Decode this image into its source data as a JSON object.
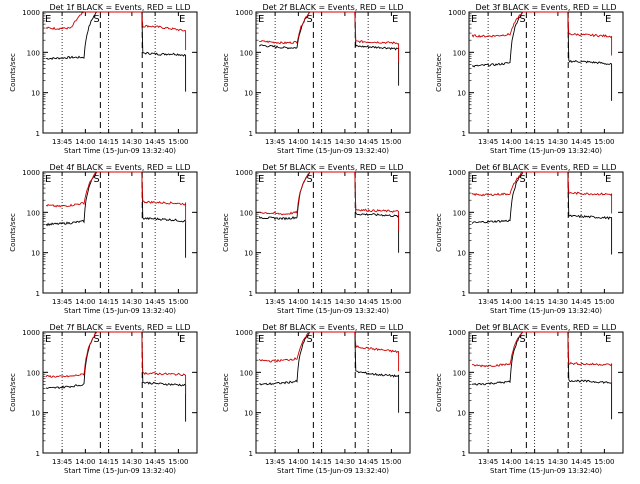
{
  "figure": {
    "xlabel": "Start Time (15-Jun-09 13:32:40)",
    "ylabel": "Counts/sec"
  },
  "chart_data": [
    {
      "type": "line",
      "title": "Det 1f BLACK = Events, RED = LLD",
      "xlabel": "Start Time (15-Jun-09 13:32:40)",
      "ylabel": "Counts/sec",
      "x_ticks": [
        "13:45",
        "14:00",
        "14:15",
        "14:30",
        "14:45",
        "15:00"
      ],
      "y_ticks": [
        "1",
        "10",
        "100",
        "1000"
      ],
      "ylim": [
        1,
        1000
      ],
      "yscale": "log",
      "xlim": [
        "13:32:40",
        "15:12"
      ],
      "markers": [
        "S",
        "E"
      ],
      "series": [
        {
          "color": "#000000",
          "values": [
            70,
            72,
            75,
            75,
            1000,
            1000,
            95,
            98,
            95,
            90,
            92,
            85
          ]
        },
        {
          "color": "#cc0000",
          "values": [
            400,
            390,
            400,
            1000,
            1000,
            1000,
            450,
            430,
            450,
            420,
            380,
            340
          ]
        }
      ]
    },
    {
      "type": "line",
      "title": "Det 2f BLACK = Events, RED = LLD",
      "xlabel": "Start Time (15-Jun-09 13:32:40)",
      "ylabel": "Counts/sec",
      "x_ticks": [
        "13:45",
        "14:00",
        "14:15",
        "14:30",
        "14:45",
        "15:00"
      ],
      "y_ticks": [
        "1",
        "10",
        "100",
        "1000"
      ],
      "ylim": [
        1,
        1000
      ],
      "yscale": "log",
      "xlim": [
        "13:32:40",
        "15:12"
      ],
      "markers": [
        "S",
        "E"
      ],
      "series": [
        {
          "color": "#000000",
          "values": [
            150,
            140,
            130,
            130,
            1000,
            1000,
            150,
            145,
            140,
            135,
            130,
            120
          ]
        },
        {
          "color": "#cc0000",
          "values": [
            190,
            180,
            170,
            180,
            1000,
            1000,
            200,
            190,
            185,
            180,
            175,
            170
          ]
        }
      ]
    },
    {
      "type": "line",
      "title": "Det 3f BLACK = Events, RED = LLD",
      "xlabel": "Start Time (15-Jun-09 13:32:40)",
      "ylabel": "Counts/sec",
      "x_ticks": [
        "13:45",
        "14:00",
        "14:15",
        "14:30",
        "14:45",
        "15:00"
      ],
      "y_ticks": [
        "1",
        "10",
        "100",
        "1000"
      ],
      "ylim": [
        1,
        1000
      ],
      "yscale": "log",
      "xlim": [
        "13:32:40",
        "15:12"
      ],
      "markers": [
        "S",
        "E"
      ],
      "series": [
        {
          "color": "#000000",
          "values": [
            45,
            48,
            50,
            55,
            1000,
            1000,
            60,
            62,
            60,
            58,
            55,
            50
          ]
        },
        {
          "color": "#cc0000",
          "values": [
            260,
            250,
            260,
            280,
            1000,
            1000,
            300,
            290,
            280,
            270,
            260,
            250
          ]
        }
      ]
    },
    {
      "type": "line",
      "title": "Det 4f BLACK = Events, RED = LLD",
      "xlabel": "Start Time (15-Jun-09 13:32:40)",
      "ylabel": "Counts/sec",
      "x_ticks": [
        "13:45",
        "14:00",
        "14:15",
        "14:30",
        "14:45",
        "15:00"
      ],
      "y_ticks": [
        "1",
        "10",
        "100",
        "1000"
      ],
      "ylim": [
        1,
        1000
      ],
      "yscale": "log",
      "xlim": [
        "13:32:40",
        "15:12"
      ],
      "markers": [
        "S",
        "E"
      ],
      "series": [
        {
          "color": "#000000",
          "values": [
            50,
            52,
            55,
            60,
            1000,
            1000,
            70,
            72,
            70,
            68,
            65,
            60
          ]
        },
        {
          "color": "#cc0000",
          "values": [
            150,
            140,
            150,
            170,
            1000,
            1000,
            200,
            190,
            180,
            175,
            170,
            160
          ]
        }
      ]
    },
    {
      "type": "line",
      "title": "Det 5f BLACK = Events, RED = LLD",
      "xlabel": "Start Time (15-Jun-09 13:32:40)",
      "ylabel": "Counts/sec",
      "x_ticks": [
        "13:45",
        "14:00",
        "14:15",
        "14:30",
        "14:45",
        "15:00"
      ],
      "y_ticks": [
        "1",
        "10",
        "100",
        "1000"
      ],
      "ylim": [
        1,
        1000
      ],
      "yscale": "log",
      "xlim": [
        "13:32:40",
        "15:12"
      ],
      "markers": [
        "S",
        "E"
      ],
      "series": [
        {
          "color": "#000000",
          "values": [
            75,
            72,
            70,
            75,
            1000,
            1000,
            100,
            95,
            90,
            88,
            85,
            80
          ]
        },
        {
          "color": "#cc0000",
          "values": [
            100,
            95,
            90,
            100,
            1000,
            1000,
            130,
            120,
            115,
            110,
            108,
            105
          ]
        }
      ]
    },
    {
      "type": "line",
      "title": "Det 6f BLACK = Events, RED = LLD",
      "xlabel": "Start Time (15-Jun-09 13:32:40)",
      "ylabel": "Counts/sec",
      "x_ticks": [
        "13:45",
        "14:00",
        "14:15",
        "14:30",
        "14:45",
        "15:00"
      ],
      "y_ticks": [
        "1",
        "10",
        "100",
        "1000"
      ],
      "ylim": [
        1,
        1000
      ],
      "yscale": "log",
      "xlim": [
        "13:32:40",
        "15:12"
      ],
      "markers": [
        "S",
        "E"
      ],
      "series": [
        {
          "color": "#000000",
          "values": [
            55,
            58,
            60,
            62,
            1000,
            1000,
            80,
            82,
            80,
            78,
            75,
            72
          ]
        },
        {
          "color": "#cc0000",
          "values": [
            280,
            270,
            280,
            290,
            1000,
            1000,
            320,
            310,
            300,
            290,
            285,
            280
          ]
        }
      ]
    },
    {
      "type": "line",
      "title": "Det 7f BLACK = Events, RED = LLD",
      "xlabel": "Start Time (15-Jun-09 13:32:40)",
      "ylabel": "Counts/sec",
      "x_ticks": [
        "13:45",
        "14:00",
        "14:15",
        "14:30",
        "14:45",
        "15:00"
      ],
      "y_ticks": [
        "1",
        "10",
        "100",
        "1000"
      ],
      "ylim": [
        1,
        1000
      ],
      "yscale": "log",
      "xlim": [
        "13:32:40",
        "15:12"
      ],
      "markers": [
        "S",
        "E"
      ],
      "series": [
        {
          "color": "#000000",
          "values": [
            40,
            42,
            45,
            50,
            1000,
            1000,
            55,
            58,
            55,
            52,
            50,
            48
          ]
        },
        {
          "color": "#cc0000",
          "values": [
            80,
            78,
            80,
            90,
            1000,
            1000,
            100,
            98,
            95,
            92,
            90,
            88
          ]
        }
      ]
    },
    {
      "type": "line",
      "title": "Det 8f BLACK = Events, RED = LLD",
      "xlabel": "Start Time (15-Jun-09 13:32:40)",
      "ylabel": "Counts/sec",
      "x_ticks": [
        "13:45",
        "14:00",
        "14:15",
        "14:30",
        "14:45",
        "15:00"
      ],
      "y_ticks": [
        "1",
        "10",
        "100",
        "1000"
      ],
      "ylim": [
        1,
        1000
      ],
      "yscale": "log",
      "xlim": [
        "13:32:40",
        "15:12"
      ],
      "markers": [
        "S",
        "E"
      ],
      "series": [
        {
          "color": "#000000",
          "values": [
            50,
            52,
            55,
            60,
            1000,
            1000,
            130,
            110,
            100,
            90,
            85,
            80
          ]
        },
        {
          "color": "#cc0000",
          "values": [
            200,
            190,
            200,
            220,
            1000,
            1000,
            600,
            480,
            420,
            380,
            350,
            320
          ]
        }
      ]
    },
    {
      "type": "line",
      "title": "Det 9f BLACK = Events, RED = LLD",
      "xlabel": "Start Time (15-Jun-09 13:32:40)",
      "ylabel": "Counts/sec",
      "x_ticks": [
        "13:45",
        "14:00",
        "14:15",
        "14:30",
        "14:45",
        "15:00"
      ],
      "y_ticks": [
        "1",
        "10",
        "100",
        "1000"
      ],
      "ylim": [
        1,
        1000
      ],
      "yscale": "log",
      "xlim": [
        "13:32:40",
        "15:12"
      ],
      "markers": [
        "S",
        "E"
      ],
      "series": [
        {
          "color": "#000000",
          "values": [
            50,
            52,
            55,
            58,
            1000,
            1000,
            62,
            65,
            62,
            60,
            58,
            55
          ]
        },
        {
          "color": "#cc0000",
          "values": [
            150,
            145,
            150,
            160,
            1000,
            1000,
            180,
            170,
            165,
            160,
            158,
            155
          ]
        }
      ]
    }
  ]
}
